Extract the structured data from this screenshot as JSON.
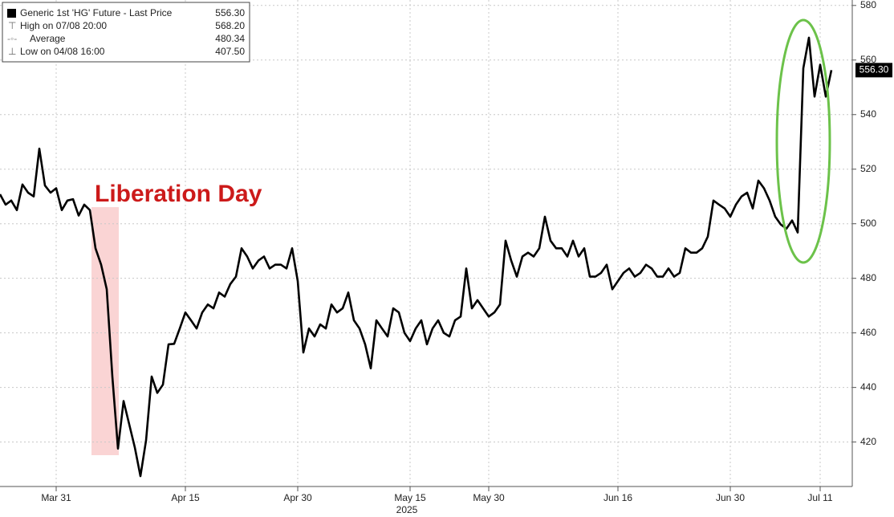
{
  "chart_data": {
    "type": "line",
    "xlabel": "2025",
    "legend": [
      {
        "label": "Generic 1st 'HG' Future - Last Price",
        "value": "556.30"
      },
      {
        "label": "High on 07/08 20:00",
        "value": "568.20"
      },
      {
        "label": "Average",
        "value": "480.34"
      },
      {
        "label": "Low on 04/08 16:00",
        "value": "407.50"
      }
    ],
    "annotations": [
      "Liberation Day"
    ],
    "categories": [
      null,
      null,
      null,
      null,
      null,
      null,
      null,
      null,
      null,
      null,
      "Mar 31",
      null,
      null,
      null,
      null,
      null,
      null,
      null,
      null,
      null,
      null,
      null,
      null,
      null,
      null,
      null,
      null,
      null,
      null,
      null,
      null,
      null,
      null,
      "Apr 15",
      null,
      null,
      null,
      null,
      null,
      null,
      null,
      null,
      null,
      null,
      null,
      null,
      null,
      null,
      null,
      null,
      null,
      null,
      null,
      "Apr 30",
      null,
      null,
      null,
      null,
      null,
      null,
      null,
      null,
      null,
      null,
      null,
      null,
      null,
      null,
      null,
      null,
      null,
      null,
      null,
      "May 15",
      null,
      null,
      null,
      null,
      null,
      null,
      null,
      null,
      null,
      null,
      null,
      null,
      null,
      "May 30",
      null,
      null,
      null,
      null,
      null,
      null,
      null,
      null,
      null,
      null,
      null,
      null,
      null,
      null,
      null,
      null,
      null,
      null,
      null,
      null,
      null,
      null,
      "Jun 16",
      null,
      null,
      null,
      null,
      null,
      null,
      null,
      null,
      null,
      null,
      null,
      null,
      null,
      null,
      null,
      null,
      null,
      null,
      null,
      "Jun 30",
      null,
      null,
      null,
      null,
      null,
      null,
      null,
      null,
      null,
      null,
      null,
      null,
      null,
      null,
      null,
      "Jul 11",
      null,
      null
    ],
    "series": [
      {
        "name": "Generic 1st 'HG' Future - Last Price",
        "color": "#000000",
        "values": [
          510.8,
          507,
          508.5,
          505,
          514.4,
          511.4,
          510,
          527.5,
          514,
          511.4,
          513,
          505,
          508.5,
          509,
          503,
          507,
          505,
          491,
          485,
          476,
          444,
          417.6,
          435,
          426.5,
          418,
          407.5,
          420.6,
          444,
          438,
          441,
          455.8,
          456,
          461.6,
          467.5,
          464.6,
          461.6,
          467.5,
          470.4,
          469,
          474.8,
          473.3,
          477.9,
          480.6,
          491,
          488,
          483.6,
          486.5,
          488,
          483.6,
          485,
          485,
          483.6,
          491,
          479,
          452.8,
          461.6,
          458.7,
          463.1,
          461.6,
          470.4,
          467.5,
          469,
          474.8,
          464.6,
          461.6,
          455.8,
          447,
          464.6,
          461.6,
          458.7,
          469,
          467.5,
          460,
          457,
          461.6,
          464.6,
          455.8,
          461.6,
          464.6,
          460,
          458.7,
          464.6,
          466,
          483.6,
          469,
          472,
          469,
          466,
          467.5,
          470.4,
          493.8,
          486.5,
          480.6,
          488,
          489.4,
          488,
          491,
          502.6,
          493.8,
          491,
          491,
          488,
          493.8,
          488,
          491,
          480.6,
          480.6,
          482,
          485,
          476,
          479,
          482,
          483.6,
          480.6,
          482,
          485,
          483.6,
          480.6,
          480.6,
          483.6,
          480.6,
          482,
          491,
          489.4,
          489.4,
          491,
          495.3,
          508.5,
          507,
          505.6,
          502.6,
          507,
          510,
          511.4,
          505.6,
          515.8,
          513,
          508.5,
          502.6,
          499.7,
          498.2,
          501.2,
          496.8,
          557,
          568.2,
          546.6,
          558.3,
          546.6,
          556.3
        ]
      }
    ],
    "ylim": [
      404,
      582
    ],
    "yticks": [
      420,
      440,
      460,
      480,
      500,
      520,
      540,
      560,
      580
    ],
    "grid": true
  }
}
